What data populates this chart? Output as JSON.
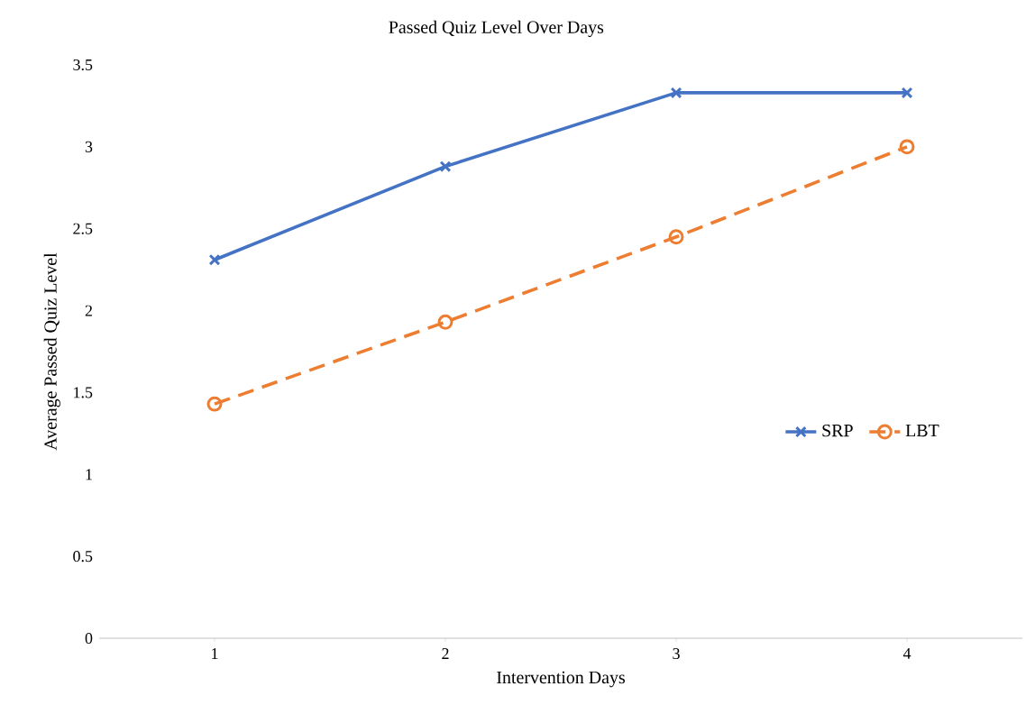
{
  "chart_data": {
    "type": "line",
    "title": "Passed Quiz Level Over Days",
    "xlabel": "Intervention Days",
    "ylabel": "Average Passed Quiz Level",
    "x": [
      1,
      2,
      3,
      4
    ],
    "series": [
      {
        "name": "SRP",
        "color": "#4472c4",
        "values": [
          2.31,
          2.88,
          3.33,
          3.33
        ],
        "marker": "cross",
        "line_style": "solid"
      },
      {
        "name": "LBT",
        "color": "#ed7d31",
        "values": [
          1.43,
          1.93,
          2.45,
          3.0
        ],
        "marker": "circle",
        "line_style": "dashed"
      }
    ],
    "xlim": [
      0.5,
      4.5
    ],
    "xticks": [
      1,
      2,
      3,
      4
    ],
    "ylim": [
      0,
      3.5
    ],
    "yticks": [
      0,
      0.5,
      1,
      1.5,
      2,
      2.5,
      3,
      3.5
    ],
    "legend": "right"
  }
}
